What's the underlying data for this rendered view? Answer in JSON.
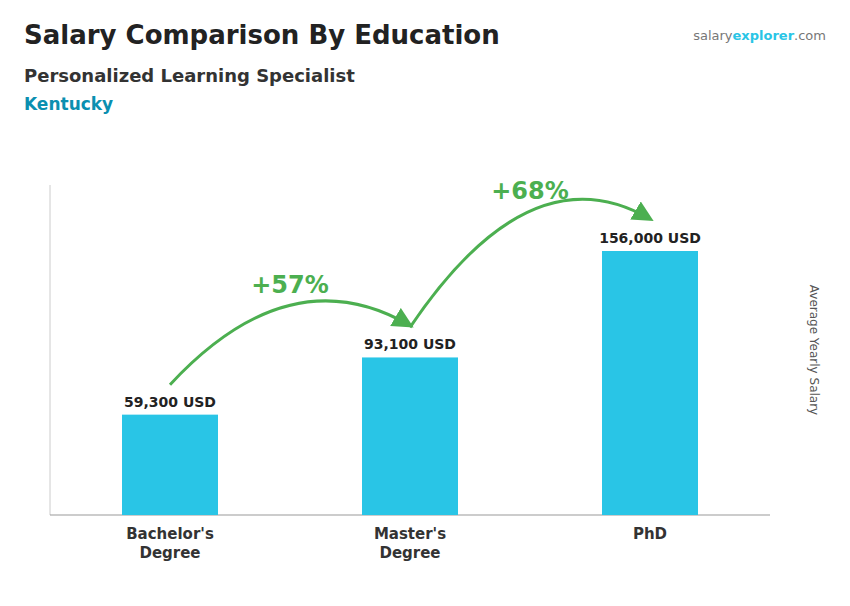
{
  "chart_data": {
    "type": "bar",
    "title": "Salary Comparison By Education",
    "subtitle": "Personalized Learning Specialist",
    "location": "Kentucky",
    "source": [
      "salary",
      "explorer",
      ".com"
    ],
    "y_label": "Average Yearly Salary",
    "categories": [
      "Bachelor's\nDegree",
      "Master's\nDegree",
      "PhD"
    ],
    "values": [
      59300,
      93100,
      156000
    ],
    "value_labels": [
      "59,300 USD",
      "93,100 USD",
      "156,000 USD"
    ],
    "annotations": [
      "+57%",
      "+68%"
    ],
    "color": "#29c5e6",
    "ylim": [
      0,
      195000
    ],
    "grid": false,
    "tick_labels": "x",
    "data_labels": true
  }
}
